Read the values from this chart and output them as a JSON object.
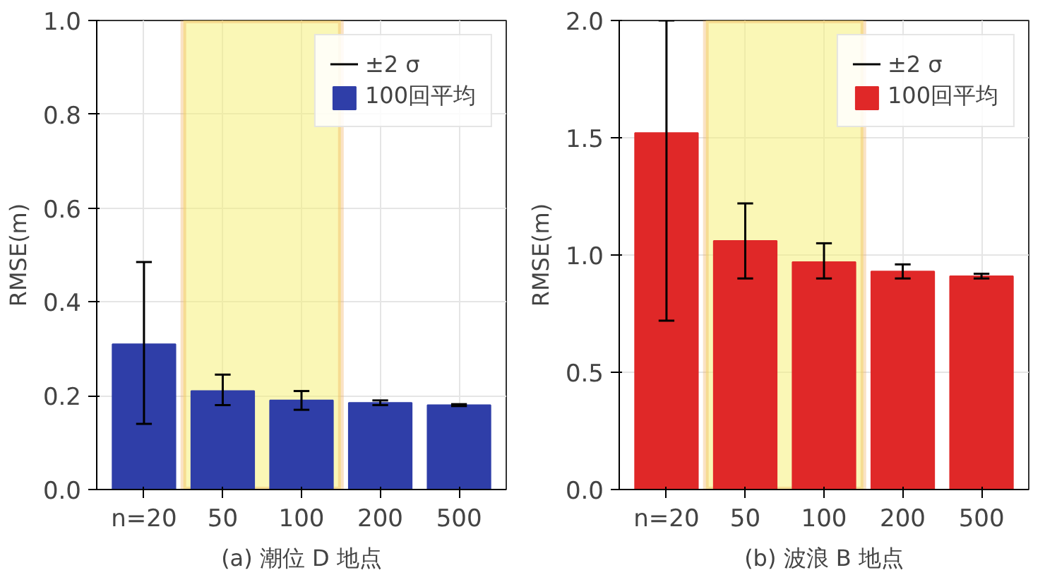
{
  "chart_data": [
    {
      "type": "bar",
      "xlabel": "(a) 潮位 D 地点",
      "ylabel": "RMSE(m)",
      "categories": [
        "n=20",
        "50",
        "100",
        "200",
        "500"
      ],
      "series": [
        {
          "name": "100回平均",
          "color": "#2f3ea8",
          "values": [
            0.31,
            0.21,
            0.19,
            0.185,
            0.18
          ],
          "errors": [
            [
              0.14,
              0.485
            ],
            [
              0.18,
              0.245
            ],
            [
              0.17,
              0.21
            ],
            [
              0.18,
              0.19
            ],
            [
              0.178,
              0.182
            ]
          ]
        }
      ],
      "annotations": [
        "±2 σ"
      ],
      "ylim": [
        0,
        1.0
      ],
      "yticks": [
        {
          "value": 0,
          "label": "0.0"
        },
        0.2,
        0.4,
        0.6,
        0.8,
        {
          "value": 1,
          "label": "1.0"
        }
      ],
      "bands": [
        {
          "axis": "x",
          "from": "50",
          "to": "100",
          "color": "#f5f07a"
        }
      ],
      "grid": true,
      "legend": "top right"
    },
    {
      "type": "bar",
      "xlabel": "(b) 波浪 B 地点",
      "ylabel": "RMSE(m)",
      "categories": [
        "n=20",
        "50",
        "100",
        "200",
        "500"
      ],
      "series": [
        {
          "name": "100回平均",
          "color": "#e02828",
          "values": [
            1.52,
            1.06,
            0.97,
            0.93,
            0.91
          ],
          "errors": [
            [
              0.72,
              2.0
            ],
            [
              0.9,
              1.22
            ],
            [
              0.9,
              1.05
            ],
            [
              0.9,
              0.96
            ],
            [
              0.9,
              0.92
            ]
          ]
        }
      ],
      "annotations": [
        "±2 σ"
      ],
      "ylim": [
        0,
        2.0
      ],
      "yticks": [
        {
          "value": 0,
          "label": "0.0"
        },
        0.5,
        {
          "value": 1,
          "label": "1.0"
        },
        1.5,
        {
          "value": 2,
          "label": "2.0"
        }
      ],
      "bands": [
        {
          "axis": "x",
          "from": "50",
          "to": "100",
          "color": "#f5f07a"
        }
      ],
      "grid": true,
      "legend": "top right"
    }
  ]
}
